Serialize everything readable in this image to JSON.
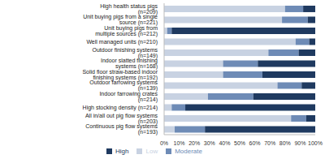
{
  "chart_data": {
    "type": "bar",
    "orientation": "horizontal",
    "stacked": true,
    "grid": false,
    "legend": "bottom",
    "categories": [
      "High health status pigs (n=209)",
      "Unit buying pigs from a single source (n=221)",
      "Unit buying pigs from multiple sources (n=212)",
      "Well managed units (n=210)",
      "Outdoor finishing systems (n=149)",
      "Indoor slatted finishing systems (n=168)",
      "Solid floor straw-based indoor finishing systems (n=192)",
      "Outdoor farrowing systems (n=139)",
      "Indoor farrowing crates (n=214)",
      "High stocking density (n=214)",
      "All in/all out pig flow systems (n=203)",
      "Continuous  pig flow systems (n=193)"
    ],
    "series": [
      {
        "name": "Low",
        "color": "#c8d2e2",
        "values": [
          80,
          78,
          2,
          87,
          69,
          39,
          39,
          75,
          29,
          5,
          84,
          7
        ]
      },
      {
        "name": "Moderate",
        "color": "#6e8bb6",
        "values": [
          12,
          17,
          3,
          9,
          20,
          23,
          26,
          16,
          30,
          9,
          10,
          20
        ]
      },
      {
        "name": "High",
        "color": "#1f3a60",
        "values": [
          8,
          5,
          95,
          4,
          11,
          38,
          35,
          9,
          41,
          86,
          6,
          73
        ]
      }
    ],
    "xlim": [
      0,
      100
    ],
    "xticks": [
      {
        "value": 0,
        "label": "0%"
      },
      {
        "value": 10,
        "label": "10%"
      },
      {
        "value": 20,
        "label": "20%"
      },
      {
        "value": 30,
        "label": "30%"
      },
      {
        "value": 40,
        "label": "40%"
      },
      {
        "value": 50,
        "label": "50%"
      },
      {
        "value": 60,
        "label": "60%"
      },
      {
        "value": 70,
        "label": "70%"
      },
      {
        "value": 80,
        "label": "80%"
      },
      {
        "value": 90,
        "label": "90%"
      },
      {
        "value": 100,
        "label": "100%"
      }
    ]
  }
}
